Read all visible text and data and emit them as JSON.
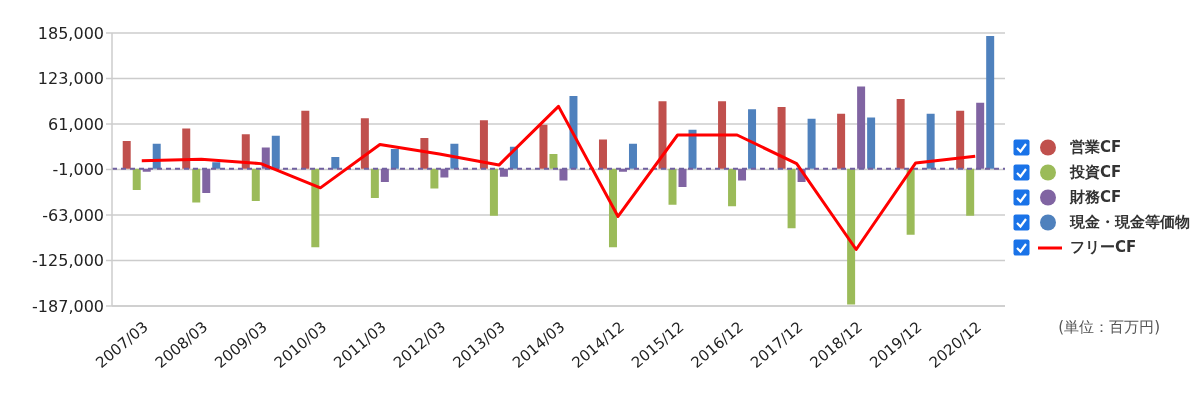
{
  "chart_data": {
    "type": "bar",
    "categories": [
      "2007/03",
      "2008/03",
      "2009/03",
      "2010/03",
      "2011/03",
      "2012/03",
      "2013/03",
      "2014/03",
      "2014/12",
      "2015/12",
      "2016/12",
      "2017/12",
      "2018/12",
      "2019/12",
      "2020/12"
    ],
    "series": [
      {
        "name": "営業CF",
        "color": "#c0504d",
        "values": [
          38000,
          55000,
          47000,
          79000,
          69000,
          42000,
          66000,
          60000,
          40000,
          92000,
          92000,
          84000,
          75000,
          95000,
          79000
        ]
      },
      {
        "name": "投資CF",
        "color": "#9bbb59",
        "values": [
          -29000,
          -46000,
          -44000,
          -107000,
          -40000,
          -27000,
          -64000,
          20000,
          -107000,
          -49000,
          -51000,
          -81000,
          -185000,
          -90000,
          -64000
        ]
      },
      {
        "name": "財務CF",
        "color": "#8064a2",
        "values": [
          -4000,
          -33000,
          29000,
          null,
          -18000,
          -12000,
          -11000,
          -16000,
          -4000,
          -25000,
          -16000,
          -18000,
          112000,
          null,
          90000
        ]
      },
      {
        "name": "現金・現金等価物",
        "color": "#4f81bd",
        "values": [
          34000,
          9000,
          45000,
          16000,
          27000,
          34000,
          30000,
          99000,
          34000,
          53000,
          81000,
          68000,
          70000,
          75000,
          181000
        ]
      },
      {
        "name": "フリーCF",
        "type": "line",
        "color": "#ff0000",
        "marker": "none",
        "values": [
          11000,
          13000,
          7000,
          -26000,
          33000,
          20000,
          5000,
          85000,
          -65000,
          46000,
          46000,
          7000,
          -110000,
          8000,
          17000
        ]
      }
    ],
    "ylim": [
      -187000,
      185000
    ],
    "yticks": [
      {
        "value": -187000,
        "label": "-187,000"
      },
      {
        "value": -125000,
        "label": "-125,000"
      },
      {
        "value": -63000,
        "label": "-63,000"
      },
      {
        "value": -1000,
        "label": "-1,000"
      },
      {
        "value": 61000,
        "label": "61,000"
      },
      {
        "value": 123000,
        "label": "123,000"
      },
      {
        "value": 185000,
        "label": "185,000"
      }
    ],
    "grid": "y",
    "legend": "right",
    "ref_lines": [
      {
        "axis": "y",
        "value": 0,
        "color": "#7060a0",
        "line_style": "dashed"
      }
    ],
    "annotations": [
      "(単位：百万円)"
    ]
  }
}
